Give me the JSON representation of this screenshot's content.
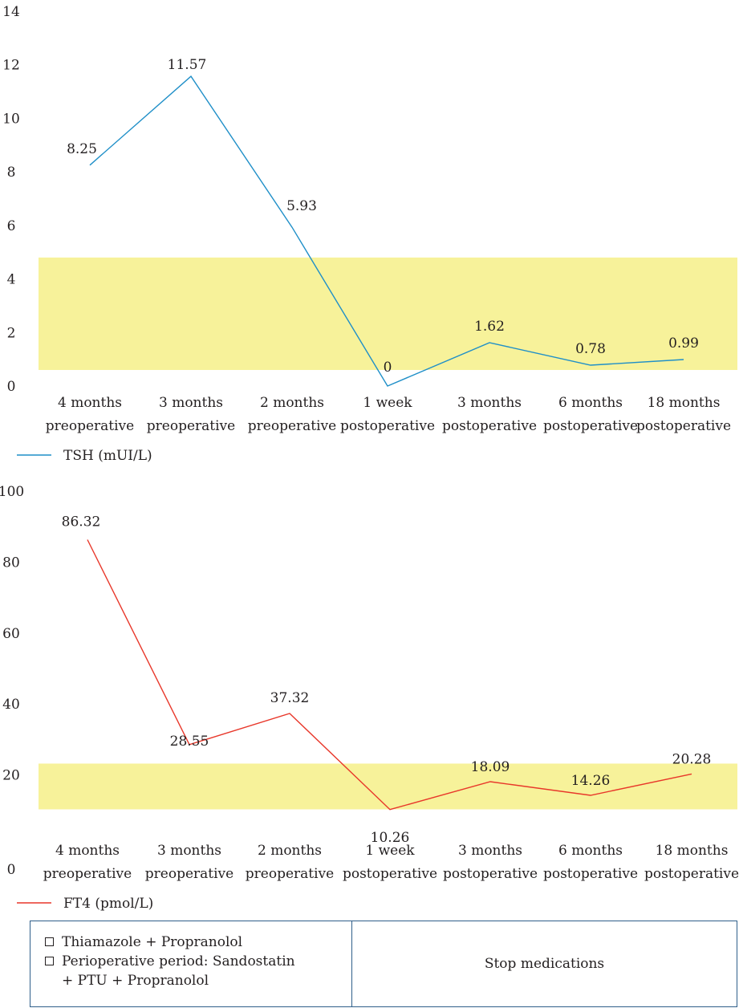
{
  "chart_data": [
    {
      "type": "line",
      "categories": [
        [
          "4 months",
          "preoperative"
        ],
        [
          "3 months",
          "preoperative"
        ],
        [
          "2 months",
          "preoperative"
        ],
        [
          "1 week",
          "postoperative"
        ],
        [
          "3 months",
          "postoperative"
        ],
        [
          "6 months",
          "postoperative"
        ],
        [
          "18 months",
          "postoperative"
        ]
      ],
      "series": [
        {
          "name": "TSH (mUI/L)",
          "values": [
            8.25,
            11.57,
            5.93,
            0,
            1.62,
            0.78,
            0.99
          ],
          "labels": [
            "8.25",
            "11.57",
            "5.93",
            "0",
            "1.62",
            "0.78",
            "0.99"
          ],
          "color": "#1f8fc8"
        }
      ],
      "ylim": [
        0,
        14
      ],
      "yticks": [
        0,
        2,
        4,
        6,
        8,
        10,
        12,
        14
      ],
      "reference_band": {
        "from": 0.6,
        "to": 4.8,
        "color": "#f7f29a"
      },
      "legend": "bottom-left",
      "grid": false
    },
    {
      "type": "line",
      "categories": [
        [
          "4 months",
          "preoperative"
        ],
        [
          "3 months",
          "preoperative"
        ],
        [
          "2 months",
          "preoperative"
        ],
        [
          "1 week",
          "postoperative"
        ],
        [
          "3 months",
          "postoperative"
        ],
        [
          "6 months",
          "postoperative"
        ],
        [
          "18 months",
          "postoperative"
        ]
      ],
      "series": [
        {
          "name": "FT4 (pmol/L)",
          "values": [
            86.32,
            28.55,
            37.32,
            10.26,
            18.09,
            14.26,
            20.28
          ],
          "labels": [
            "86.32",
            "28.55",
            "37.32",
            "10.26",
            "18.09",
            "14.26",
            "20.28"
          ],
          "color": "#e8372a"
        }
      ],
      "ylim": [
        0,
        100
      ],
      "yticks": [
        0,
        20,
        40,
        60,
        80,
        100
      ],
      "reference_band": {
        "from": 10.3,
        "to": 23.2,
        "color": "#f7f29a"
      },
      "legend": "bottom-left",
      "grid": false
    }
  ],
  "medications": {
    "left_items": [
      "Thiamazole + Propranolol",
      "Perioperative period: Sandostatin + PTU + Propranolol"
    ],
    "right_text": "Stop medications"
  }
}
